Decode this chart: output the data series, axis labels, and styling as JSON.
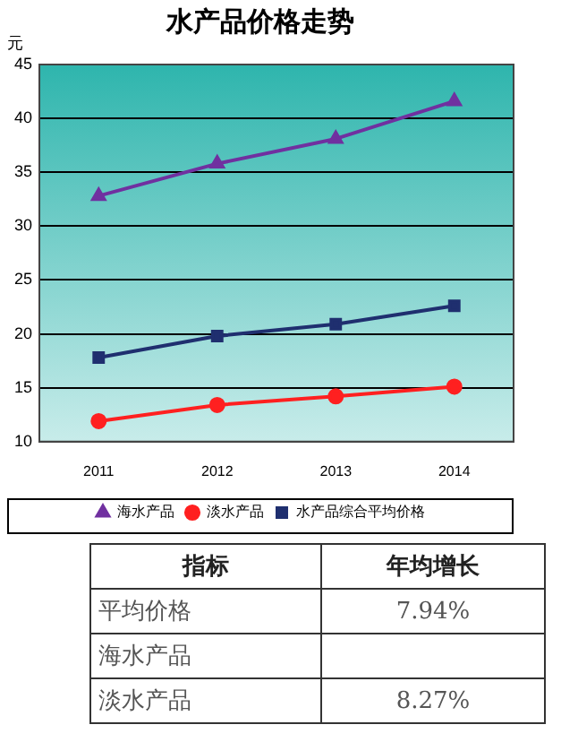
{
  "chart_data": {
    "type": "line",
    "title": "水产品价格走势",
    "ylabel": "元",
    "categories": [
      "2011",
      "2012",
      "2013",
      "2014"
    ],
    "series": [
      {
        "name": "海水产品",
        "color": "#7030a0",
        "marker": "triangle",
        "values": [
          32.8,
          35.8,
          38.1,
          41.6
        ]
      },
      {
        "name": "淡水产品",
        "color": "#ff2020",
        "marker": "circle",
        "values": [
          11.9,
          13.4,
          14.2,
          15.1
        ]
      },
      {
        "name": "水产品综合平均价格",
        "color": "#1f2f6f",
        "marker": "square",
        "values": [
          17.8,
          19.8,
          20.9,
          22.6
        ]
      }
    ],
    "ylim": [
      10,
      45
    ],
    "yticks": [
      10,
      15,
      20,
      25,
      30,
      35,
      40,
      45
    ],
    "grid": "y",
    "legend": "bottom",
    "line_style": "solid",
    "annotations": [
      "指标",
      "年均增长",
      "平均价格",
      "7.94%",
      "海水产品",
      "淡水产品",
      "8.27%"
    ]
  }
}
